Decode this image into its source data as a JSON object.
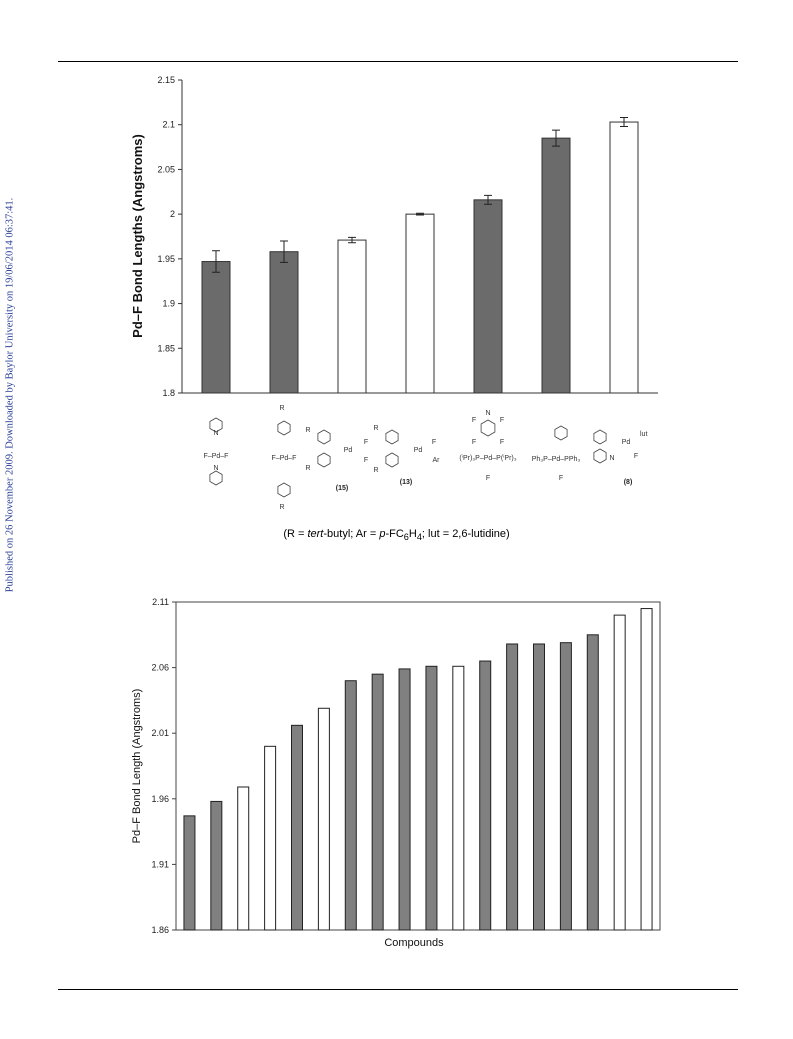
{
  "sidebar_text": "Published on 26 November 2009. Downloaded by Baylor University on 19/06/2014 06:37:41.",
  "footnote": "(R = tert-butyl; Ar = p-FC6H4; lut = 2,6-lutidine)",
  "colors": {
    "filled": "#6b6b6b",
    "open": "#ffffff",
    "stroke": "#333333"
  },
  "chart_data": [
    {
      "type": "bar",
      "title": "",
      "xlabel": "",
      "ylabel": "Pd–F Bond Lengths (Angstroms)",
      "ylim": [
        1.8,
        2.15
      ],
      "yticks": [
        "1.8",
        "1.85",
        "1.9",
        "1.95",
        "2",
        "2.05",
        "2.1",
        "2.15"
      ],
      "grid": false,
      "legend": "none",
      "series": [
        {
          "values": [
            1.947,
            1.958,
            1.971,
            2.0,
            2.016,
            2.085,
            2.103
          ],
          "errors": [
            0.012,
            0.012,
            0.003,
            0.001,
            0.005,
            0.009,
            0.005
          ],
          "fill": [
            "filled",
            "filled",
            "open",
            "open",
            "filled",
            "filled",
            "open"
          ]
        }
      ],
      "compound_labels": [
        "",
        "",
        "(15)",
        "(13)",
        "",
        "",
        "(8)"
      ],
      "structure_text": [
        [
          "F–Pd–F"
        ],
        [
          "R",
          "F–Pd–F",
          "R"
        ],
        [
          "R",
          "Pd",
          "F",
          "F",
          "R"
        ],
        [
          "R",
          "Pd",
          "F",
          "Ar",
          "R"
        ],
        [
          "F",
          "N",
          "F",
          "F",
          "F",
          "(ⁱPr)₃P–Pd–P(ⁱPr)₃",
          "F"
        ],
        [
          "Ph₃P–Pd–PPh₃",
          "F"
        ],
        [
          "Pd",
          "lut",
          "N",
          "F"
        ]
      ]
    },
    {
      "type": "bar",
      "title": "",
      "xlabel": "Compounds",
      "ylabel": "Pd–F Bond Length (Angstroms)",
      "ylim": [
        1.86,
        2.11
      ],
      "yticks": [
        "1.86",
        "1.91",
        "1.96",
        "2.01",
        "2.06",
        "2.11"
      ],
      "grid": false,
      "legend": "none",
      "series": [
        {
          "values": [
            1.947,
            1.958,
            1.969,
            2.0,
            2.016,
            2.029,
            2.05,
            2.055,
            2.059,
            2.061,
            2.061,
            2.065,
            2.078,
            2.078,
            2.079,
            2.085,
            2.1,
            2.105
          ],
          "fill": [
            "filled",
            "filled",
            "open",
            "open",
            "filled",
            "open",
            "filled",
            "filled",
            "filled",
            "filled",
            "open",
            "filled",
            "filled",
            "filled",
            "filled",
            "filled",
            "open",
            "open"
          ]
        }
      ]
    }
  ]
}
